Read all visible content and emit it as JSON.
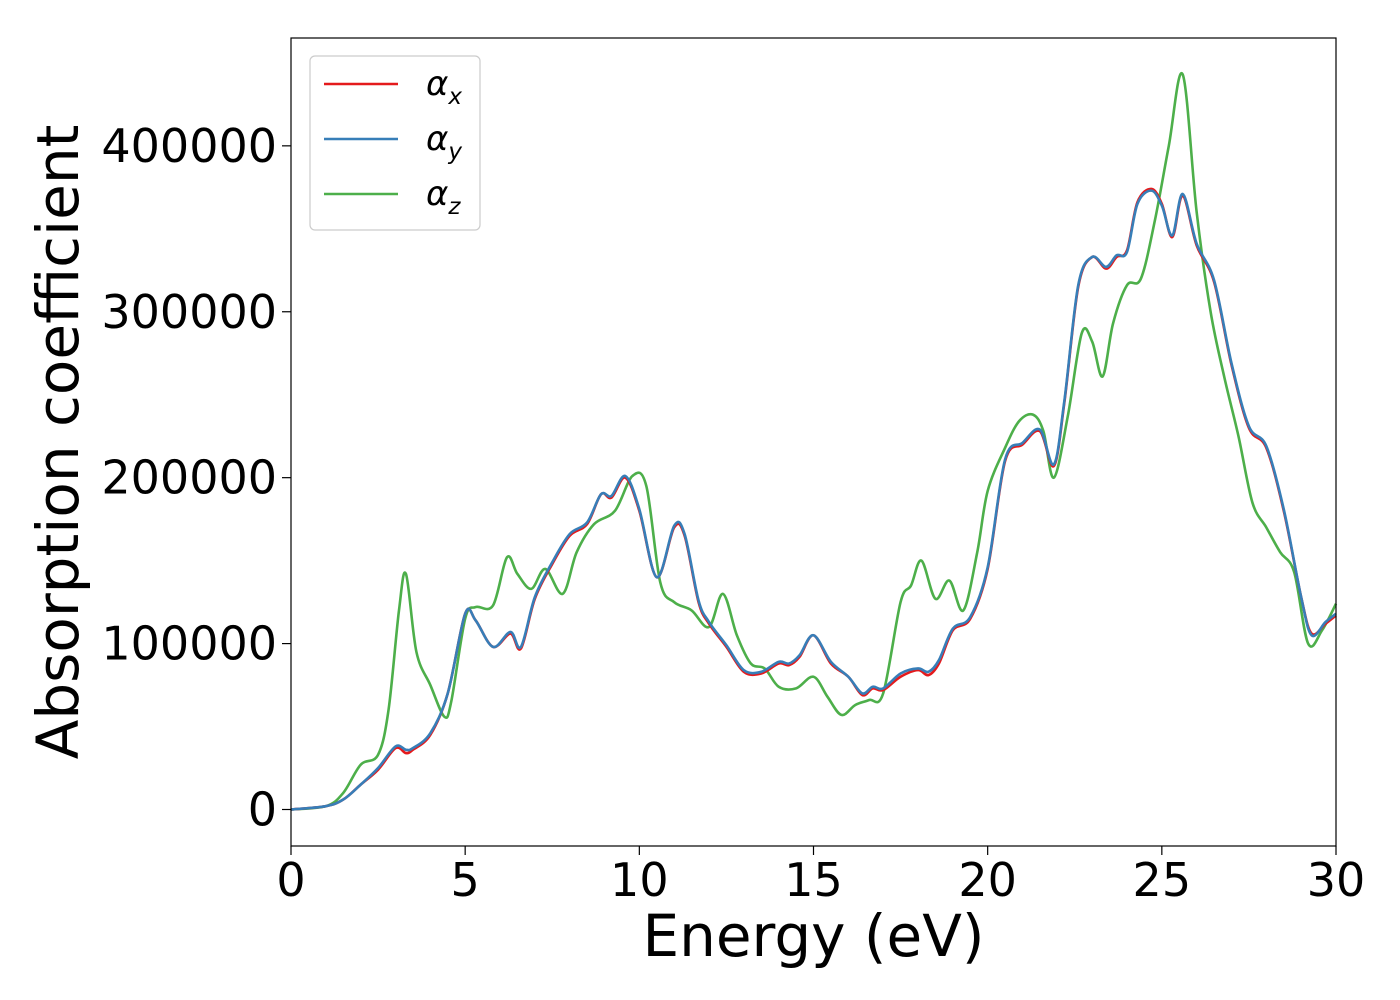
{
  "chart_data": {
    "type": "line",
    "xlabel": "Energy (eV)",
    "ylabel": "Absorption coefficient",
    "xlim": [
      0,
      30
    ],
    "ylim": [
      -22000,
      465000
    ],
    "xticks": [
      0,
      5,
      10,
      15,
      20,
      25,
      30
    ],
    "yticks": [
      0,
      100000,
      200000,
      300000,
      400000
    ],
    "grid": false,
    "legend_position": "top-left",
    "series": [
      {
        "name": "αx",
        "legend_base": "α",
        "legend_sub": "x",
        "color": "#e41a1c",
        "x": [
          0,
          1,
          1.5,
          2,
          2.5,
          3,
          3.3,
          3.5,
          4,
          4.5,
          5,
          5.3,
          5.8,
          6.3,
          6.6,
          7,
          7.5,
          8,
          8.5,
          8.9,
          9.2,
          9.6,
          10,
          10.5,
          11,
          11.3,
          11.7,
          12,
          12.5,
          13,
          13.5,
          14,
          14.3,
          14.6,
          15,
          15.5,
          16,
          16.4,
          16.7,
          17,
          17.5,
          18,
          18.3,
          18.6,
          19,
          19.5,
          20,
          20.5,
          21,
          21.5,
          21.9,
          22.2,
          22.6,
          23,
          23.4,
          23.7,
          24,
          24.3,
          24.7,
          25,
          25.3,
          25.6,
          26,
          26.5,
          27,
          27.5,
          28,
          28.5,
          29,
          29.3,
          29.7,
          30
        ],
        "y": [
          0,
          2000,
          6000,
          15000,
          24000,
          37000,
          34000,
          36000,
          45000,
          70000,
          118000,
          114000,
          98000,
          106000,
          97000,
          127000,
          148000,
          165000,
          172000,
          190000,
          188000,
          200000,
          180000,
          140000,
          170000,
          165000,
          125000,
          112000,
          98000,
          83000,
          82000,
          88000,
          87000,
          92000,
          105000,
          88000,
          80000,
          69000,
          73000,
          72000,
          80000,
          84000,
          81000,
          88000,
          108000,
          115000,
          145000,
          210000,
          220000,
          228000,
          207000,
          245000,
          315000,
          333000,
          326000,
          333000,
          337000,
          366000,
          374000,
          365000,
          345000,
          370000,
          340000,
          318000,
          268000,
          230000,
          218000,
          180000,
          128000,
          106000,
          112000,
          117000
        ]
      },
      {
        "name": "αy",
        "legend_base": "α",
        "legend_sub": "y",
        "color": "#377eb8",
        "x": [
          0,
          1,
          1.5,
          2,
          2.5,
          3,
          3.3,
          3.5,
          4,
          4.5,
          5,
          5.3,
          5.8,
          6.3,
          6.6,
          7,
          7.5,
          8,
          8.5,
          8.9,
          9.2,
          9.6,
          10,
          10.5,
          11,
          11.3,
          11.7,
          12,
          12.5,
          13,
          13.5,
          14,
          14.3,
          14.6,
          15,
          15.5,
          16,
          16.4,
          16.7,
          17,
          17.5,
          18,
          18.3,
          18.6,
          19,
          19.5,
          20,
          20.5,
          21,
          21.5,
          21.9,
          22.2,
          22.6,
          23,
          23.4,
          23.7,
          24,
          24.3,
          24.7,
          25,
          25.3,
          25.6,
          26,
          26.5,
          27,
          27.5,
          28,
          28.5,
          29,
          29.3,
          29.7,
          30
        ],
        "y": [
          0,
          2000,
          6000,
          15000,
          25000,
          38000,
          36000,
          37000,
          46000,
          70000,
          118000,
          114000,
          98000,
          107000,
          98000,
          128000,
          149000,
          166000,
          173000,
          190000,
          189000,
          201000,
          181000,
          140000,
          171000,
          166000,
          126000,
          113000,
          99000,
          84000,
          83000,
          89000,
          88000,
          93000,
          105000,
          89000,
          80000,
          70000,
          74000,
          73000,
          82000,
          85000,
          83000,
          90000,
          109000,
          116000,
          146000,
          211000,
          221000,
          229000,
          208000,
          246000,
          316000,
          333000,
          327000,
          334000,
          336000,
          365000,
          373000,
          364000,
          346000,
          371000,
          341000,
          319000,
          269000,
          231000,
          219000,
          181000,
          128000,
          105000,
          113000,
          118000
        ]
      },
      {
        "name": "αz",
        "legend_base": "α",
        "legend_sub": "z",
        "color": "#4daf4a",
        "x": [
          0,
          1,
          1.5,
          2,
          2.5,
          2.8,
          3.1,
          3.3,
          3.6,
          4,
          4.4,
          4.6,
          5,
          5.3,
          5.8,
          6.2,
          6.5,
          6.9,
          7.3,
          7.8,
          8.2,
          8.7,
          9.3,
          9.8,
          10.2,
          10.6,
          11,
          11.5,
          12,
          12.4,
          12.8,
          13.2,
          13.6,
          14,
          14.5,
          15,
          15.4,
          15.8,
          16.2,
          16.6,
          17,
          17.5,
          17.8,
          18.1,
          18.5,
          18.9,
          19.3,
          19.7,
          20,
          20.5,
          20.9,
          21.3,
          21.6,
          21.9,
          22.3,
          22.7,
          23,
          23.3,
          23.6,
          24,
          24.4,
          24.8,
          25.2,
          25.6,
          26,
          26.4,
          26.8,
          27.2,
          27.6,
          28,
          28.4,
          28.8,
          29.2,
          29.6,
          30
        ],
        "y": [
          0,
          2000,
          10000,
          27000,
          33000,
          60000,
          120000,
          142000,
          95000,
          75000,
          56000,
          65000,
          115000,
          122000,
          123000,
          152000,
          142000,
          133000,
          145000,
          130000,
          155000,
          172000,
          180000,
          201000,
          195000,
          137000,
          125000,
          120000,
          110000,
          130000,
          105000,
          88000,
          85000,
          74000,
          73000,
          80000,
          68000,
          57000,
          63000,
          66000,
          70000,
          125000,
          135000,
          150000,
          127000,
          138000,
          120000,
          155000,
          192000,
          218000,
          234000,
          238000,
          228000,
          200000,
          237000,
          287000,
          282000,
          261000,
          293000,
          316000,
          320000,
          355000,
          400000,
          443000,
          360000,
          300000,
          260000,
          225000,
          185000,
          170000,
          155000,
          143000,
          100000,
          108000,
          124000
        ]
      }
    ]
  }
}
